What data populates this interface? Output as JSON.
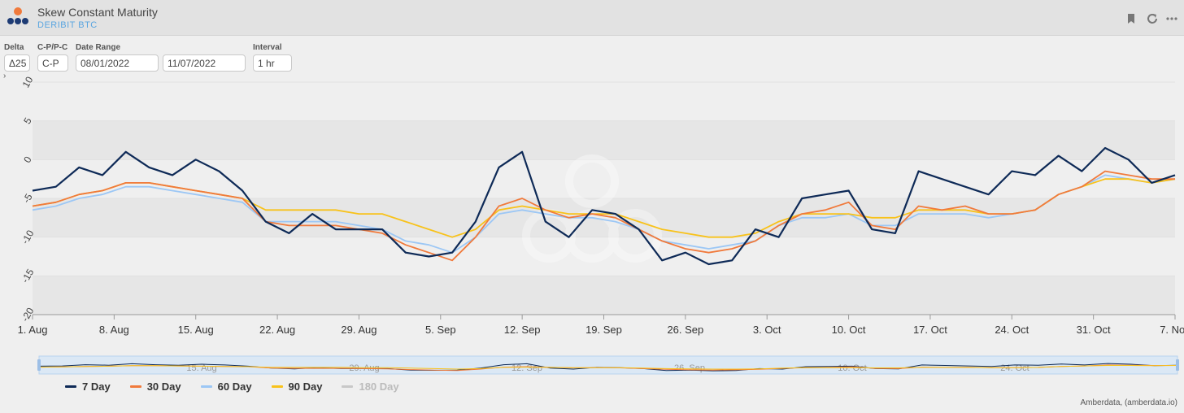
{
  "header": {
    "title": "Skew Constant Maturity",
    "subtitle": "DERIBIT BTC",
    "icons": [
      "bookmark-icon",
      "refresh-icon",
      "more-icon"
    ]
  },
  "controls": {
    "delta": {
      "label": "Delta",
      "value": "Δ25"
    },
    "cp": {
      "label": "C-P/P-C",
      "value": "C-P"
    },
    "date_range": {
      "label": "Date Range",
      "start": "08/01/2022",
      "end": "11/07/2022"
    },
    "interval": {
      "label": "Interval",
      "value": "1 hr"
    }
  },
  "credit": "Amberdata, (amberdata.io)",
  "colors": {
    "7 Day": "#0e2a57",
    "30 Day": "#f07a3c",
    "60 Day": "#9cc7f5",
    "90 Day": "#f8c21a",
    "180 Day": "#c8c8c8"
  },
  "chart_data": {
    "type": "line",
    "ylim": [
      -20,
      10
    ],
    "yticks": [
      10,
      5,
      0,
      -5,
      -10,
      -15,
      -20
    ],
    "ytick_labels": [
      "10",
      "5",
      "0",
      "-5",
      "-10",
      "-15",
      "-20"
    ],
    "xlim": [
      "2022-08-01",
      "2022-11-07"
    ],
    "xticks": [
      {
        "date": "2022-08-01",
        "label": "1. Aug"
      },
      {
        "date": "2022-08-08",
        "label": "8. Aug"
      },
      {
        "date": "2022-08-15",
        "label": "15. Aug"
      },
      {
        "date": "2022-08-22",
        "label": "22. Aug"
      },
      {
        "date": "2022-08-29",
        "label": "29. Aug"
      },
      {
        "date": "2022-09-05",
        "label": "5. Sep"
      },
      {
        "date": "2022-09-12",
        "label": "12. Sep"
      },
      {
        "date": "2022-09-19",
        "label": "19. Sep"
      },
      {
        "date": "2022-09-26",
        "label": "26. Sep"
      },
      {
        "date": "2022-10-03",
        "label": "3. Oct"
      },
      {
        "date": "2022-10-10",
        "label": "10. Oct"
      },
      {
        "date": "2022-10-17",
        "label": "17. Oct"
      },
      {
        "date": "2022-10-24",
        "label": "24. Oct"
      },
      {
        "date": "2022-10-31",
        "label": "31. Oct"
      },
      {
        "date": "2022-11-07",
        "label": "7. Nov"
      }
    ],
    "navigator_labels": [
      "15. Aug",
      "29. Aug",
      "12. Sep",
      "26. Sep",
      "10. Oct",
      "24. Oct"
    ],
    "grid": true,
    "legend_position": "bottom-left",
    "x": [
      "2022-08-01",
      "2022-08-03",
      "2022-08-05",
      "2022-08-07",
      "2022-08-09",
      "2022-08-11",
      "2022-08-13",
      "2022-08-15",
      "2022-08-17",
      "2022-08-19",
      "2022-08-21",
      "2022-08-23",
      "2022-08-25",
      "2022-08-27",
      "2022-08-29",
      "2022-08-31",
      "2022-09-02",
      "2022-09-04",
      "2022-09-06",
      "2022-09-08",
      "2022-09-10",
      "2022-09-12",
      "2022-09-14",
      "2022-09-16",
      "2022-09-18",
      "2022-09-20",
      "2022-09-22",
      "2022-09-24",
      "2022-09-26",
      "2022-09-28",
      "2022-09-30",
      "2022-10-02",
      "2022-10-04",
      "2022-10-06",
      "2022-10-08",
      "2022-10-10",
      "2022-10-12",
      "2022-10-14",
      "2022-10-16",
      "2022-10-18",
      "2022-10-20",
      "2022-10-22",
      "2022-10-24",
      "2022-10-26",
      "2022-10-28",
      "2022-10-30",
      "2022-11-01",
      "2022-11-03",
      "2022-11-05",
      "2022-11-07"
    ],
    "series": [
      {
        "name": "7 Day",
        "values": [
          -4,
          -3.5,
          -1,
          -2,
          1,
          -1,
          -2,
          0,
          -1.5,
          -4,
          -8,
          -9.5,
          -7,
          -9,
          -9,
          -9,
          -12,
          -12.5,
          -12,
          -8,
          -1,
          1,
          -8,
          -10,
          -6.5,
          -7,
          -9,
          -13,
          -12,
          -13.5,
          -13,
          -9,
          -10,
          -5,
          -4.5,
          -4,
          -9,
          -9.5,
          -1.5,
          -2.5,
          -3.5,
          -4.5,
          -1.5,
          -2,
          0.5,
          -1.5,
          1.5,
          0,
          -3,
          -2
        ]
      },
      {
        "name": "30 Day",
        "values": [
          -6,
          -5.5,
          -4.5,
          -4,
          -3,
          -3,
          -3.5,
          -4,
          -4.5,
          -5,
          -8,
          -8.5,
          -8.5,
          -8.5,
          -9,
          -9.5,
          -11,
          -12,
          -13,
          -10,
          -6,
          -5,
          -6.5,
          -7.5,
          -7,
          -7.5,
          -9,
          -10.5,
          -11.5,
          -12,
          -11.5,
          -10.5,
          -8.5,
          -7,
          -6.5,
          -5.5,
          -8.5,
          -9,
          -6,
          -6.5,
          -6,
          -7,
          -7,
          -6.5,
          -4.5,
          -3.5,
          -1.5,
          -2,
          -2.5,
          -2.5
        ]
      },
      {
        "name": "60 Day",
        "values": [
          -6.5,
          -6,
          -5,
          -4.5,
          -3.5,
          -3.5,
          -4,
          -4.5,
          -5,
          -5.5,
          -8,
          -8,
          -8,
          -8,
          -8.5,
          -9,
          -10.5,
          -11,
          -12,
          -10,
          -7,
          -6.5,
          -7,
          -7.5,
          -7.5,
          -8,
          -9,
          -10.5,
          -11,
          -11.5,
          -11,
          -10.5,
          -8.5,
          -7.5,
          -7.5,
          -7,
          -8.5,
          -8.5,
          -7,
          -7,
          -7,
          -7.5,
          -7,
          -6.5,
          -4.5,
          -3.5,
          -2,
          -2.5,
          -3,
          -2.5
        ]
      },
      {
        "name": "90 Day",
        "values": [
          -6,
          -5.5,
          -4.5,
          -4,
          -3,
          -3,
          -3.5,
          -4,
          -4.5,
          -5,
          -6.5,
          -6.5,
          -6.5,
          -6.5,
          -7,
          -7,
          -8,
          -9,
          -10,
          -9,
          -6.5,
          -6,
          -6.5,
          -7,
          -7,
          -7,
          -8,
          -9,
          -9.5,
          -10,
          -10,
          -9.5,
          -8,
          -7,
          -7,
          -7,
          -7.5,
          -7.5,
          -6.5,
          -6.5,
          -6.5,
          -7,
          -7,
          -6.5,
          -4.5,
          -3.5,
          -2.5,
          -2.5,
          -3,
          -2.5
        ]
      }
    ],
    "hidden_series": [
      "180 Day"
    ]
  }
}
